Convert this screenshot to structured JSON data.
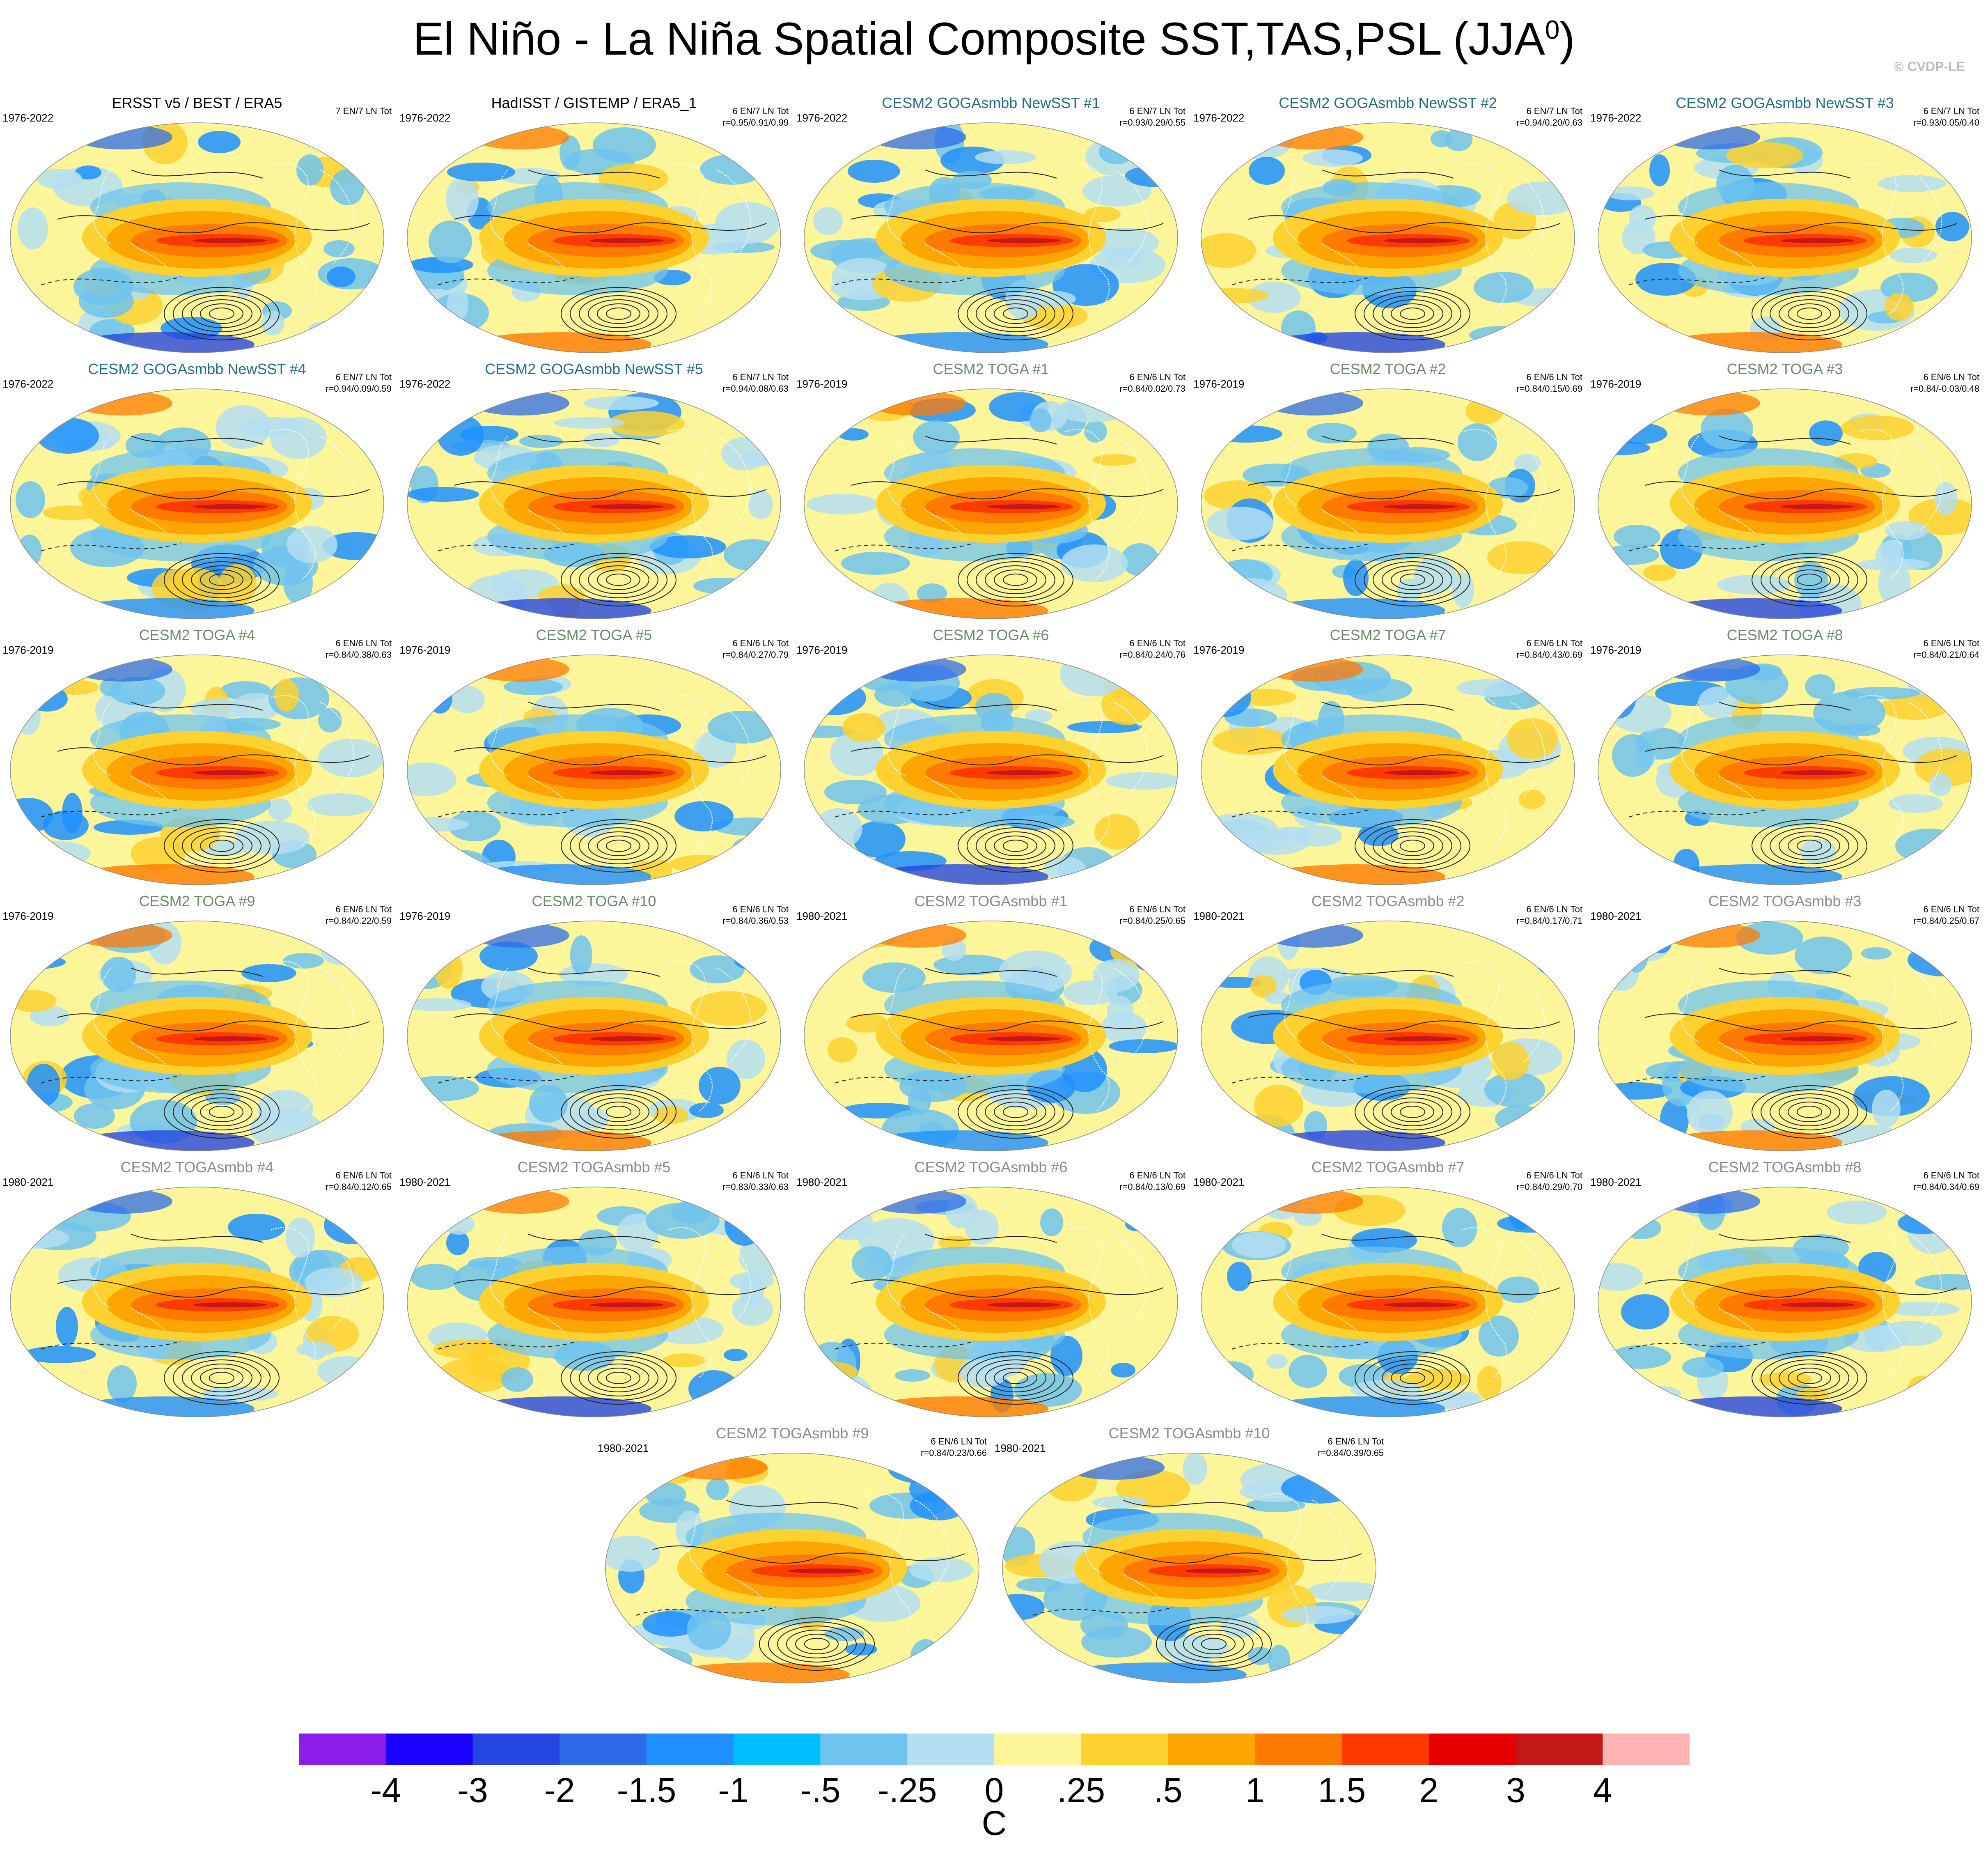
{
  "title": "El Niño - La Niña Spatial Composite SST,TAS,PSL (JJA",
  "title_superscript": "0",
  "title_close": ")",
  "credit": "© CVDP-LE",
  "chart_data": {
    "type": "heatmap",
    "description_of_fields": "composite SST/TAS anomaly (filled) with PSL (contours)",
    "panels": [
      {
        "title": "ERSST v5 / BEST / ERA5",
        "years": "1976-2022",
        "count": "7 EN/7 LN Tot",
        "corr": "",
        "title_color": "#000000"
      },
      {
        "title": "HadISST / GISTEMP / ERA5_1",
        "years": "1976-2022",
        "count": "6 EN/7 LN Tot",
        "corr": "r=0.95/0.91/0.99",
        "title_color": "#000000"
      },
      {
        "title": "CESM2 GOGAsmbb NewSST #1",
        "years": "1976-2022",
        "count": "6 EN/7 LN Tot",
        "corr": "r=0.93/0.29/0.55",
        "title_color": "#1f6f85"
      },
      {
        "title": "CESM2 GOGAsmbb NewSST #2",
        "years": "1976-2022",
        "count": "6 EN/7 LN Tot",
        "corr": "r=0.94/0.20/0.63",
        "title_color": "#1f6f85"
      },
      {
        "title": "CESM2 GOGAsmbb NewSST #3",
        "years": "1976-2022",
        "count": "6 EN/7 LN Tot",
        "corr": "r=0.93/0.05/0.40",
        "title_color": "#1f6f85"
      },
      {
        "title": "CESM2 GOGAsmbb NewSST #4",
        "years": "1976-2022",
        "count": "6 EN/7 LN Tot",
        "corr": "r=0.94/0.09/0.59",
        "title_color": "#1f6f85"
      },
      {
        "title": "CESM2 GOGAsmbb NewSST #5",
        "years": "1976-2022",
        "count": "6 EN/7 LN Tot",
        "corr": "r=0.94/0.08/0.63",
        "title_color": "#1f6f85"
      },
      {
        "title": "CESM2 TOGA #1",
        "years": "1976-2019",
        "count": "6 EN/6 LN Tot",
        "corr": "r=0.84/0.02/0.73",
        "title_color": "#6a8a6a"
      },
      {
        "title": "CESM2 TOGA #2",
        "years": "1976-2019",
        "count": "6 EN/6 LN Tot",
        "corr": "r=0.84/0.15/0.69",
        "title_color": "#6a8a6a"
      },
      {
        "title": "CESM2 TOGA #3",
        "years": "1976-2019",
        "count": "6 EN/6 LN Tot",
        "corr": "r=0.84/-0.03/0.48",
        "title_color": "#6a8a6a"
      },
      {
        "title": "CESM2 TOGA #4",
        "years": "1976-2019",
        "count": "6 EN/6 LN Tot",
        "corr": "r=0.84/0.38/0.63",
        "title_color": "#6a8a6a"
      },
      {
        "title": "CESM2 TOGA #5",
        "years": "1976-2019",
        "count": "6 EN/6 LN Tot",
        "corr": "r=0.84/0.27/0.79",
        "title_color": "#6a8a6a"
      },
      {
        "title": "CESM2 TOGA #6",
        "years": "1976-2019",
        "count": "6 EN/6 LN Tot",
        "corr": "r=0.84/0.24/0.76",
        "title_color": "#6a8a6a"
      },
      {
        "title": "CESM2 TOGA #7",
        "years": "1976-2019",
        "count": "6 EN/6 LN Tot",
        "corr": "r=0.84/0.43/0.69",
        "title_color": "#6a8a6a"
      },
      {
        "title": "CESM2 TOGA #8",
        "years": "1976-2019",
        "count": "6 EN/6 LN Tot",
        "corr": "r=0.84/0.21/0.64",
        "title_color": "#6a8a6a"
      },
      {
        "title": "CESM2 TOGA #9",
        "years": "1976-2019",
        "count": "6 EN/6 LN Tot",
        "corr": "r=0.84/0.22/0.59",
        "title_color": "#6a8a6a"
      },
      {
        "title": "CESM2 TOGA #10",
        "years": "1976-2019",
        "count": "6 EN/6 LN Tot",
        "corr": "r=0.84/0.36/0.53",
        "title_color": "#6a8a6a"
      },
      {
        "title": "CESM2 TOGAsmbb #1",
        "years": "1980-2021",
        "count": "6 EN/6 LN Tot",
        "corr": "r=0.84/0.25/0.65",
        "title_color": "#8a8a8a"
      },
      {
        "title": "CESM2 TOGAsmbb #2",
        "years": "1980-2021",
        "count": "6 EN/6 LN Tot",
        "corr": "r=0.84/0.17/0.71",
        "title_color": "#8a8a8a"
      },
      {
        "title": "CESM2 TOGAsmbb #3",
        "years": "1980-2021",
        "count": "6 EN/6 LN Tot",
        "corr": "r=0.84/0.25/0.67",
        "title_color": "#8a8a8a"
      },
      {
        "title": "CESM2 TOGAsmbb #4",
        "years": "1980-2021",
        "count": "6 EN/6 LN Tot",
        "corr": "r=0.84/0.12/0.65",
        "title_color": "#8a8a8a"
      },
      {
        "title": "CESM2 TOGAsmbb #5",
        "years": "1980-2021",
        "count": "6 EN/6 LN Tot",
        "corr": "r=0.83/0.33/0.63",
        "title_color": "#8a8a8a"
      },
      {
        "title": "CESM2 TOGAsmbb #6",
        "years": "1980-2021",
        "count": "6 EN/6 LN Tot",
        "corr": "r=0.84/0.13/0.69",
        "title_color": "#8a8a8a"
      },
      {
        "title": "CESM2 TOGAsmbb #7",
        "years": "1980-2021",
        "count": "6 EN/6 LN Tot",
        "corr": "r=0.84/0.29/0.70",
        "title_color": "#8a8a8a"
      },
      {
        "title": "CESM2 TOGAsmbb #8",
        "years": "1980-2021",
        "count": "6 EN/6 LN Tot",
        "corr": "r=0.84/0.34/0.69",
        "title_color": "#8a8a8a"
      },
      {
        "title": "CESM2 TOGAsmbb #9",
        "years": "1980-2021",
        "count": "6 EN/6 LN Tot",
        "corr": "r=0.84/0.23/0.66",
        "title_color": "#8a8a8a"
      },
      {
        "title": "CESM2 TOGAsmbb #10",
        "years": "1980-2021",
        "count": "6 EN/6 LN Tot",
        "corr": "r=0.84/0.39/0.65",
        "title_color": "#8a8a8a"
      }
    ],
    "colorbar": {
      "labels": [
        "-4",
        "-3",
        "-2",
        "-1.5",
        "-1",
        "-.5",
        "-.25",
        "0",
        ".25",
        ".5",
        "1",
        "1.5",
        "2",
        "3",
        "4"
      ],
      "colors": [
        "#8a1ee6",
        "#1a00ff",
        "#2646e0",
        "#2e6be8",
        "#1e90ff",
        "#00bfff",
        "#6ec3ef",
        "#b4def2",
        "#fdf59a",
        "#fdd12f",
        "#fda500",
        "#ff7a00",
        "#ff3a00",
        "#e60000",
        "#c41818",
        "#ffb3b3"
      ],
      "units": "C"
    }
  }
}
